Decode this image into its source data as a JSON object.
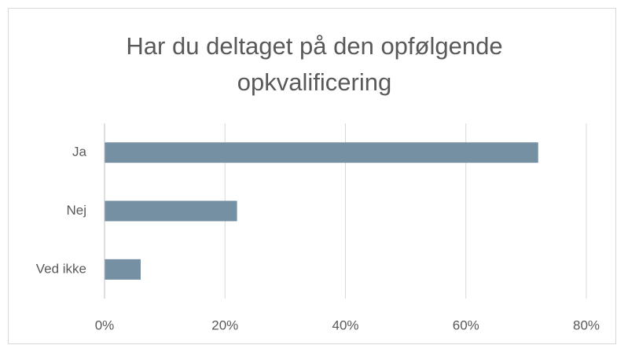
{
  "chart_data": {
    "type": "bar",
    "orientation": "horizontal",
    "title": "Har du deltaget på den opfølgende opkvalificering",
    "categories": [
      "Ja",
      "Nej",
      "Ved ikke"
    ],
    "values": [
      72,
      22,
      6
    ],
    "color": "#7590a2",
    "xlim": [
      0,
      80
    ],
    "xticks": [
      {
        "value": 0,
        "label": "0%"
      },
      {
        "value": 20,
        "label": "20%"
      },
      {
        "value": 40,
        "label": "40%"
      },
      {
        "value": 60,
        "label": "60%"
      },
      {
        "value": 80,
        "label": "80%"
      }
    ],
    "grid": true
  }
}
